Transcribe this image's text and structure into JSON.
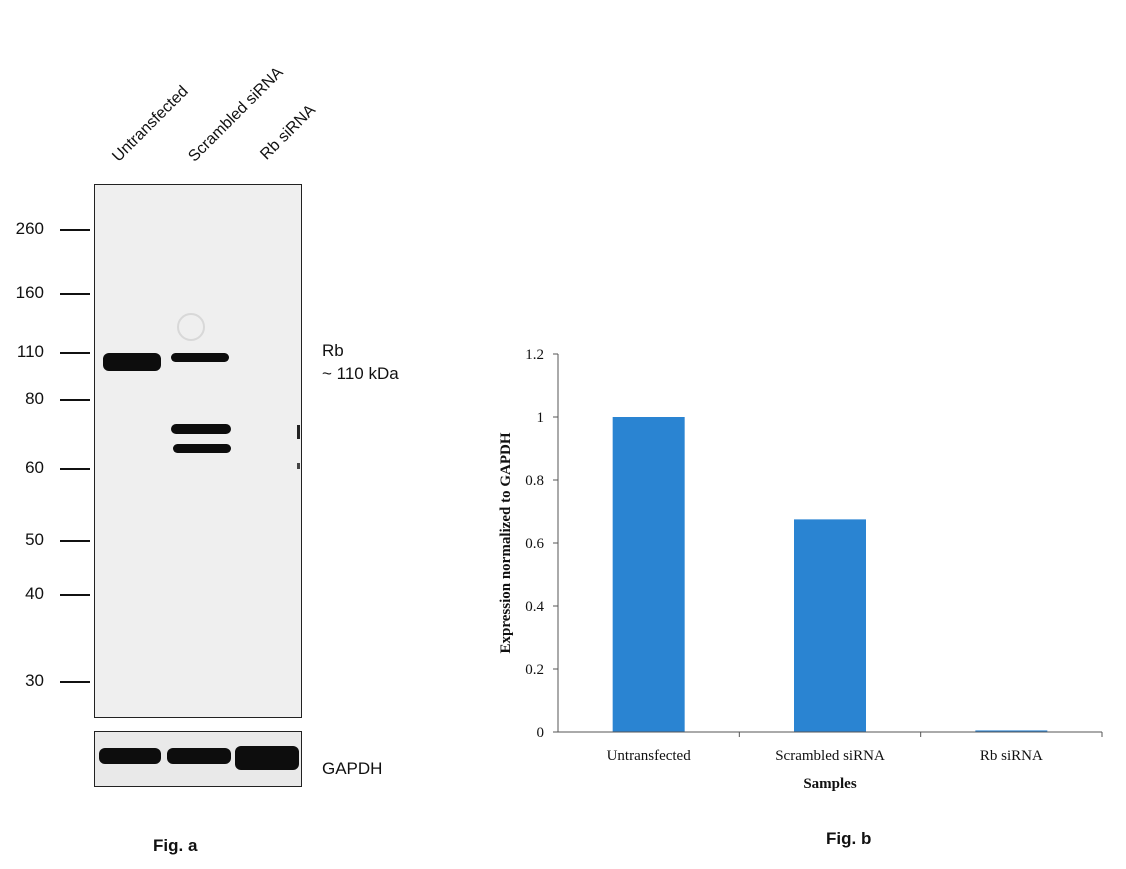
{
  "fig_a": {
    "lane_labels": [
      "Untransfected",
      "Scrambled siRNA",
      "Rb siRNA"
    ],
    "mw_markers": [
      "260",
      "160",
      "110",
      "80",
      "60",
      "50",
      "40",
      "30"
    ],
    "target_name": "Rb",
    "target_size": "~ 110 kDa",
    "loading_control": "GAPDH",
    "caption": "Fig. a"
  },
  "fig_b": {
    "caption": "Fig. b"
  },
  "chart_data": {
    "type": "bar",
    "categories": [
      "Untransfected",
      "Scrambled siRNA",
      "Rb siRNA"
    ],
    "values": [
      1.0,
      0.675,
      0.005
    ],
    "xlabel": "Samples",
    "ylabel": "Expression normalized to GAPDH",
    "ylim": [
      0,
      1.2
    ],
    "yticks": [
      "0",
      "0.2",
      "0.4",
      "0.6",
      "0.8",
      "1",
      "1.2"
    ],
    "grid": false,
    "bar_color": "#2a84d2"
  }
}
